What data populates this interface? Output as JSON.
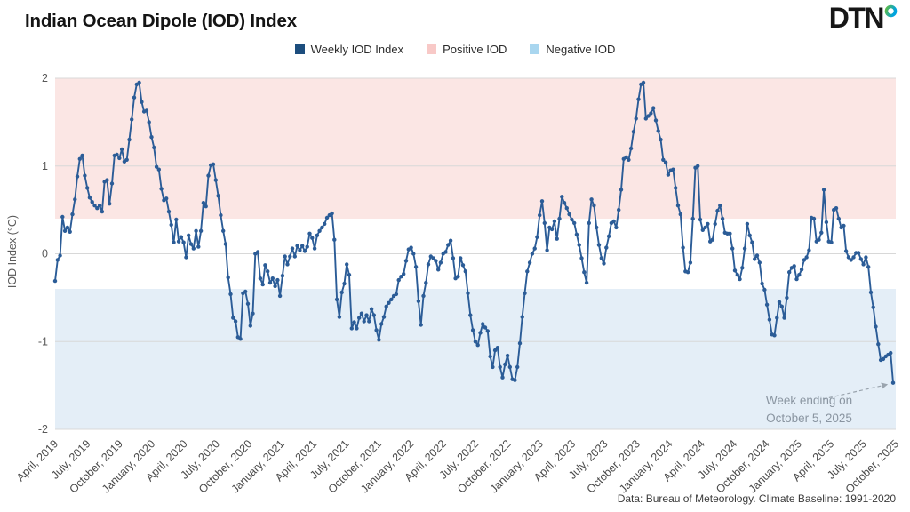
{
  "header": {
    "title": "Indian Ocean Dipole (IOD) Index",
    "logo_text": "DTN",
    "logo_ring_colors": [
      "#5cb947",
      "#00a3e0"
    ]
  },
  "legend": {
    "items": [
      {
        "label": "Weekly IOD Index",
        "color": "#1d4e7e"
      },
      {
        "label": "Positive IOD",
        "color": "#f8c9c7"
      },
      {
        "label": "Negative IOD",
        "color": "#a9d6ef"
      }
    ]
  },
  "annotation": {
    "line1": "Week ending on",
    "line2": "October 5, 2025"
  },
  "footer": {
    "source": "Data: Bureau of Meteorology. Climate Baseline: 1991-2020"
  },
  "chart_data": {
    "type": "line",
    "title": "Indian Ocean Dipole (IOD) Index",
    "ylabel": "IOD Index (°C)",
    "ylim": [
      -2,
      2
    ],
    "y_ticks": [
      2,
      1,
      0,
      -1,
      -2
    ],
    "x_ticks": [
      "April, 2019",
      "July, 2019",
      "October, 2019",
      "January, 2020",
      "April, 2020",
      "July, 2020",
      "October, 2020",
      "January, 2021",
      "April, 2021",
      "July, 2021",
      "October, 2021",
      "January, 2022",
      "April, 2022",
      "July, 2022",
      "October, 2022",
      "January, 2023",
      "April, 2023",
      "July, 2023",
      "October, 2023",
      "January, 2024",
      "April, 2024",
      "July, 2024",
      "October, 2024",
      "January, 2025",
      "April, 2025",
      "July, 2025",
      "October, 2025"
    ],
    "grid_color": "#d8d8d8",
    "bands": {
      "positive": {
        "from": 0.4,
        "to": 2,
        "color": "#fbe6e4",
        "label": "Positive IOD"
      },
      "negative": {
        "from": -2,
        "to": -0.4,
        "color": "#e4eef7",
        "label": "Negative IOD"
      }
    },
    "series": [
      {
        "name": "Weekly IOD Index",
        "color": "#2b5c97",
        "interval": "weekly",
        "first_week": "April 2019",
        "last_week_label": "Week ending on October 5, 2025",
        "values": [
          -0.31,
          -0.07,
          -0.02,
          0.42,
          0.26,
          0.3,
          0.25,
          0.45,
          0.62,
          0.88,
          1.08,
          1.12,
          0.89,
          0.75,
          0.64,
          0.59,
          0.55,
          0.52,
          0.55,
          0.48,
          0.82,
          0.84,
          0.57,
          0.8,
          1.12,
          1.13,
          1.09,
          1.19,
          1.05,
          1.07,
          1.3,
          1.53,
          1.78,
          1.93,
          1.95,
          1.73,
          1.62,
          1.63,
          1.5,
          1.33,
          1.21,
          0.99,
          0.96,
          0.74,
          0.61,
          0.63,
          0.48,
          0.33,
          0.13,
          0.39,
          0.14,
          0.19,
          0.13,
          -0.04,
          0.21,
          0.11,
          0.06,
          0.26,
          0.08,
          0.26,
          0.58,
          0.54,
          0.89,
          1.01,
          1.02,
          0.84,
          0.66,
          0.44,
          0.26,
          0.11,
          -0.27,
          -0.46,
          -0.73,
          -0.77,
          -0.95,
          -0.97,
          -0.45,
          -0.43,
          -0.57,
          -0.82,
          -0.68,
          0.0,
          0.02,
          -0.28,
          -0.35,
          -0.13,
          -0.2,
          -0.33,
          -0.28,
          -0.37,
          -0.3,
          -0.48,
          -0.25,
          -0.03,
          -0.12,
          -0.03,
          0.06,
          -0.03,
          0.09,
          0.04,
          0.09,
          0.03,
          0.08,
          0.23,
          0.18,
          0.06,
          0.21,
          0.26,
          0.3,
          0.34,
          0.41,
          0.44,
          0.46,
          0.16,
          -0.52,
          -0.72,
          -0.44,
          -0.34,
          -0.12,
          -0.24,
          -0.85,
          -0.78,
          -0.85,
          -0.73,
          -0.68,
          -0.77,
          -0.7,
          -0.77,
          -0.63,
          -0.7,
          -0.87,
          -0.98,
          -0.8,
          -0.72,
          -0.6,
          -0.56,
          -0.52,
          -0.48,
          -0.46,
          -0.3,
          -0.26,
          -0.23,
          -0.08,
          0.05,
          0.07,
          0.0,
          -0.15,
          -0.54,
          -0.81,
          -0.48,
          -0.33,
          -0.12,
          -0.03,
          -0.05,
          -0.08,
          -0.18,
          -0.1,
          0.0,
          0.02,
          0.1,
          0.15,
          -0.05,
          -0.28,
          -0.26,
          -0.05,
          -0.13,
          -0.2,
          -0.45,
          -0.7,
          -0.87,
          -1.0,
          -1.04,
          -0.9,
          -0.8,
          -0.84,
          -0.88,
          -1.17,
          -1.29,
          -1.1,
          -1.07,
          -1.29,
          -1.41,
          -1.26,
          -1.16,
          -1.29,
          -1.43,
          -1.44,
          -1.29,
          -1.02,
          -0.72,
          -0.45,
          -0.2,
          -0.1,
          0.0,
          0.06,
          0.19,
          0.44,
          0.6,
          0.35,
          0.04,
          0.3,
          0.28,
          0.37,
          0.17,
          0.4,
          0.65,
          0.58,
          0.52,
          0.45,
          0.39,
          0.35,
          0.22,
          0.1,
          -0.05,
          -0.21,
          -0.33,
          0.35,
          0.62,
          0.55,
          0.3,
          0.1,
          -0.05,
          -0.11,
          0.07,
          0.2,
          0.35,
          0.37,
          0.3,
          0.5,
          0.73,
          1.08,
          1.1,
          1.07,
          1.2,
          1.39,
          1.54,
          1.76,
          1.93,
          1.95,
          1.54,
          1.57,
          1.6,
          1.66,
          1.52,
          1.4,
          1.3,
          1.07,
          1.04,
          0.9,
          0.95,
          0.96,
          0.75,
          0.55,
          0.45,
          0.07,
          -0.2,
          -0.21,
          -0.1,
          0.4,
          0.98,
          1.0,
          0.39,
          0.27,
          0.3,
          0.34,
          0.14,
          0.16,
          0.34,
          0.49,
          0.55,
          0.4,
          0.24,
          0.23,
          0.23,
          0.06,
          -0.19,
          -0.24,
          -0.29,
          -0.16,
          0.06,
          0.34,
          0.21,
          0.13,
          -0.06,
          -0.02,
          -0.1,
          -0.34,
          -0.41,
          -0.58,
          -0.75,
          -0.92,
          -0.93,
          -0.73,
          -0.55,
          -0.6,
          -0.73,
          -0.5,
          -0.21,
          -0.16,
          -0.14,
          -0.29,
          -0.24,
          -0.18,
          -0.07,
          -0.04,
          0.04,
          0.41,
          0.4,
          0.14,
          0.16,
          0.24,
          0.73,
          0.36,
          0.14,
          0.13,
          0.5,
          0.52,
          0.4,
          0.3,
          0.32,
          0.03,
          -0.04,
          -0.07,
          -0.04,
          0.01,
          0.01,
          -0.06,
          -0.12,
          -0.04,
          -0.15,
          -0.44,
          -0.61,
          -0.83,
          -1.03,
          -1.21,
          -1.2,
          -1.17,
          -1.15,
          -1.13,
          -1.47
        ]
      }
    ],
    "last_point": {
      "label": "Week ending on October 5, 2025",
      "value": -1.47
    },
    "layout_hints": {
      "legend_position": "top-center",
      "grid": "horizontal-only"
    }
  }
}
